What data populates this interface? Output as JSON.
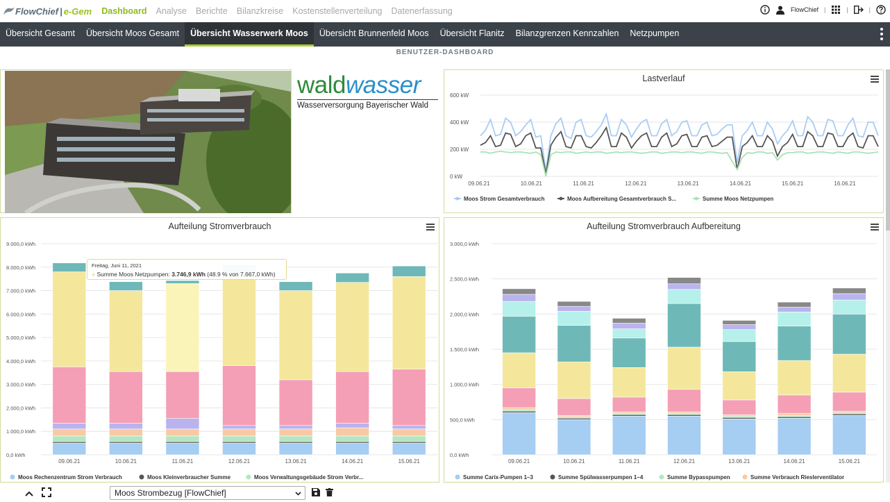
{
  "app": {
    "logo_part1": "FlowChief",
    "logo_sep": "|",
    "logo_part2": "e-Gem",
    "user": "FlowChief"
  },
  "topnav": [
    "Dashboard",
    "Analyse",
    "Berichte",
    "Bilanzkreise",
    "Kostenstellenverteilung",
    "Datenerfassung"
  ],
  "tabs": [
    "Übersicht Gesamt",
    "Übersicht Moos Gesamt",
    "Übersicht Wasserwerk Moos",
    "Übersicht Brunnenfeld Moos",
    "Übersicht Flanitz",
    "Bilanzgrenzen Kennzahlen",
    "Netzpumpen"
  ],
  "active_tab": 2,
  "subtitle": "BENUTZER-DASHBOARD",
  "logo_brand": {
    "part1": "wald",
    "part2": "wasser",
    "tagline": "Wasserversorgung Bayerischer Wald"
  },
  "lastverlauf": {
    "title": "Lastverlauf",
    "chart_data": {
      "type": "line",
      "yticks": [
        "600 kW",
        "400 kW",
        "200 kW",
        "0 kW"
      ],
      "xticks": [
        "09.06.21",
        "10.06.21",
        "11.06.21",
        "12.06.21",
        "13.06.21",
        "14.06.21",
        "15.06.21",
        "16.06.21"
      ],
      "ylim": [
        0,
        600
      ],
      "series": [
        {
          "name": "Moos Strom Gesamtverbrauch",
          "color": "#a8cdf5",
          "values": [
            300,
            340,
            420,
            300,
            310,
            430,
            400,
            300,
            330,
            380,
            420,
            290,
            300,
            40,
            300,
            390,
            430,
            300,
            280,
            400,
            420,
            300,
            290,
            330,
            380,
            460,
            300,
            300,
            420,
            380,
            290,
            350,
            400,
            420,
            300,
            300,
            390,
            420,
            300,
            330,
            400,
            410,
            300,
            300,
            380,
            400,
            300,
            310,
            350,
            380,
            380,
            100,
            300,
            340,
            400,
            300,
            300,
            400,
            350,
            240,
            300,
            340,
            410,
            300,
            300,
            440,
            400,
            300,
            300,
            420,
            410,
            300,
            300,
            380,
            430,
            300,
            290,
            400,
            400,
            300
          ]
        },
        {
          "name": "Moos Aufbereitung Gesamtverbrauch S...",
          "color": "#555555",
          "values": [
            230,
            250,
            300,
            220,
            230,
            320,
            310,
            220,
            240,
            300,
            320,
            210,
            210,
            20,
            230,
            290,
            330,
            220,
            210,
            300,
            300,
            220,
            210,
            250,
            300,
            360,
            220,
            220,
            320,
            290,
            210,
            260,
            300,
            320,
            220,
            220,
            290,
            320,
            220,
            240,
            300,
            310,
            220,
            220,
            290,
            300,
            220,
            230,
            260,
            290,
            290,
            50,
            220,
            250,
            300,
            220,
            220,
            300,
            260,
            150,
            220,
            250,
            310,
            220,
            220,
            330,
            300,
            220,
            220,
            320,
            310,
            220,
            220,
            290,
            320,
            220,
            210,
            300,
            300,
            220
          ]
        },
        {
          "name": "Summe Moos Netzpumpen",
          "color": "#a8e3b3",
          "values": [
            180,
            180,
            170,
            180,
            185,
            180,
            175,
            180,
            180,
            175,
            170,
            180,
            160,
            0,
            160,
            180,
            175,
            180,
            180,
            170,
            175,
            180,
            175,
            180,
            180,
            170,
            175,
            180,
            175,
            180,
            180,
            175,
            170,
            175,
            180,
            180,
            170,
            175,
            180,
            180,
            175,
            180,
            180,
            175,
            170,
            180,
            180,
            175,
            170,
            175,
            110,
            50,
            140,
            175,
            170,
            180,
            180,
            170,
            175,
            120,
            160,
            175,
            175,
            180,
            180,
            170,
            175,
            180,
            180,
            175,
            170,
            180,
            175,
            170,
            180,
            180,
            175,
            170,
            175,
            180
          ]
        }
      ]
    }
  },
  "stromverbrauch": {
    "title": "Aufteilung Stromverbrauch",
    "tooltip": {
      "date": "Freitag, Juni 11, 2021",
      "series": "Summe Moos Netzpumpen:",
      "value": "3.746,9 kWh",
      "rest": "(48.9 % von 7.667,0 kWh)"
    },
    "chart_data": {
      "type": "bar",
      "categories": [
        "09.06.21",
        "10.06.21",
        "11.06.21",
        "12.06.21",
        "13.06.21",
        "14.06.21",
        "15.06.21"
      ],
      "yticks": [
        "9.000,0 kWh",
        "8.000,0 kWh",
        "7.000,0 kWh",
        "6.000,0 kWh",
        "5.000,0 kWh",
        "4.000,0 kWh",
        "3.000,0 kWh",
        "2.000,0 kWh",
        "1.000,0 kWh",
        "0,0 kWh"
      ],
      "ylim": [
        0,
        9000
      ],
      "series": [
        {
          "name": "Moos Rechenzentrum Strom Verbrauch",
          "color": "#a6cdf2",
          "values": [
            500,
            500,
            500,
            500,
            500,
            500,
            500
          ]
        },
        {
          "name": "Moos Kleinverbraucher Summe",
          "color": "#555555",
          "values": [
            60,
            60,
            60,
            60,
            60,
            60,
            60
          ]
        },
        {
          "name": "Moos Verwaltungsgebäude Strom Verbr...",
          "color": "#b3e7c0",
          "values": [
            240,
            240,
            240,
            240,
            240,
            240,
            240
          ]
        },
        {
          "name": "",
          "color": "#f8c9a4",
          "values": [
            300,
            300,
            300,
            300,
            300,
            350,
            300
          ]
        },
        {
          "name": "",
          "color": "#b9b3ee",
          "values": [
            250,
            250,
            450,
            150,
            150,
            200,
            150
          ]
        },
        {
          "name": "",
          "color": "#f49fb6",
          "values": [
            2400,
            2200,
            2000,
            2550,
            1950,
            2200,
            2400
          ]
        },
        {
          "name": "",
          "color": "#f4e79c",
          "values": [
            4050,
            3450,
            3750,
            3900,
            3800,
            3800,
            3950
          ]
        },
        {
          "name": "",
          "color": "#6eb9b8",
          "values": [
            380,
            380,
            130,
            400,
            380,
            400,
            450
          ]
        }
      ]
    }
  },
  "aufbereitung": {
    "title": "Aufteilung Stromverbrauch Aufbereitung",
    "chart_data": {
      "type": "bar",
      "categories": [
        "09.06.21",
        "10.06.21",
        "11.06.21",
        "12.06.21",
        "13.06.21",
        "14.06.21",
        "15.06.21"
      ],
      "yticks": [
        "3.000,0 kWh",
        "2.500,0 kWh",
        "2.000,0 kWh",
        "1.500,0 kWh",
        "1.000,0 kWh",
        "500,0 kWh",
        "0,0 kWh"
      ],
      "ylim": [
        0,
        3000
      ],
      "series": [
        {
          "name": "Summe Carix-Pumpen 1–3",
          "color": "#a6cdf2",
          "values": [
            600,
            500,
            550,
            550,
            510,
            520,
            560
          ]
        },
        {
          "name": "Summe Spülwasserpumpen 1–4",
          "color": "#555555",
          "values": [
            20,
            20,
            20,
            20,
            20,
            20,
            20
          ]
        },
        {
          "name": "Summe Bypasspumpen",
          "color": "#b3e7c0",
          "values": [
            20,
            20,
            20,
            20,
            20,
            20,
            20
          ]
        },
        {
          "name": "Summe Verbrauch Rieslerventilator",
          "color": "#f8c9a4",
          "values": [
            30,
            20,
            20,
            20,
            20,
            30,
            20
          ]
        },
        {
          "name": "",
          "color": "#f49fb6",
          "values": [
            280,
            240,
            210,
            320,
            210,
            260,
            270
          ]
        },
        {
          "name": "",
          "color": "#f4e79c",
          "values": [
            500,
            520,
            420,
            600,
            400,
            490,
            540
          ]
        },
        {
          "name": "",
          "color": "#6eb9b8",
          "values": [
            520,
            520,
            420,
            620,
            430,
            490,
            570
          ]
        },
        {
          "name": "",
          "color": "#b6f0ea",
          "values": [
            210,
            200,
            130,
            200,
            170,
            200,
            200
          ]
        },
        {
          "name": "",
          "color": "#b9b3ee",
          "values": [
            100,
            70,
            80,
            80,
            70,
            70,
            90
          ]
        },
        {
          "name": "",
          "color": "#888888",
          "values": [
            80,
            70,
            70,
            90,
            60,
            70,
            80
          ]
        }
      ]
    }
  },
  "bottom": {
    "select_value": "Moos Strombezug [FlowChief]"
  }
}
